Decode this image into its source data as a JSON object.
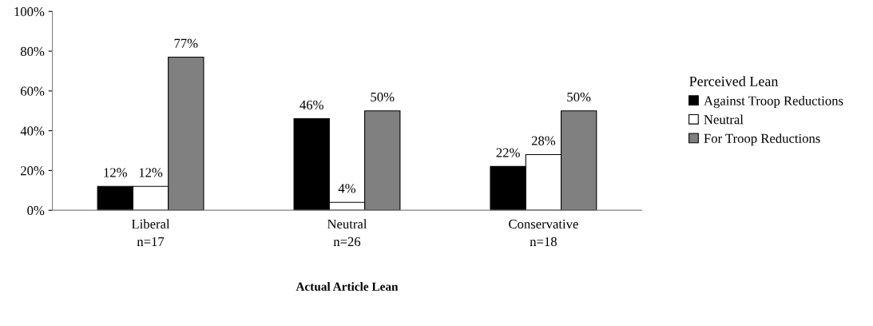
{
  "chart_data": {
    "type": "bar",
    "xlabel": "Actual Article Lean",
    "legend_title": "Perceived Lean",
    "categories": [
      "Liberal\nn=17",
      "Neutral\nn=26",
      "Conservative\nn=18"
    ],
    "series": [
      {
        "name": "Against Troop Reductions",
        "color": "#000000",
        "values": [
          12,
          46,
          22
        ],
        "value_labels": [
          "12%",
          "46%",
          "22%"
        ]
      },
      {
        "name": "Neutral",
        "color": "#ffffff",
        "values": [
          12,
          4,
          28
        ],
        "value_labels": [
          "12%",
          "4%",
          "28%"
        ]
      },
      {
        "name": "For Troop Reductions",
        "color": "#808080",
        "values": [
          77,
          50,
          50
        ],
        "value_labels": [
          "77%",
          "50%",
          "50%"
        ]
      }
    ],
    "ylim": [
      0,
      100
    ],
    "yticks": [
      {
        "value": 0,
        "label": "0%"
      },
      {
        "value": 20,
        "label": "20%"
      },
      {
        "value": 40,
        "label": "40%"
      },
      {
        "value": 60,
        "label": "60%"
      },
      {
        "value": 80,
        "label": "80%"
      },
      {
        "value": 100,
        "label": "100%"
      }
    ],
    "grid": false,
    "legend": "right"
  }
}
